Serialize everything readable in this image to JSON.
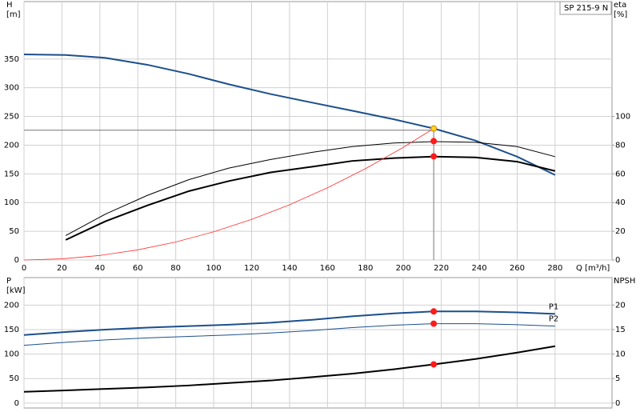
{
  "chart_data": [
    {
      "type": "line",
      "label": "SP 215-9 N",
      "ylabel": [
        "H",
        "[m]"
      ],
      "y2label": [
        "eta",
        "[%]"
      ],
      "xlabel": "Q [m³/h]",
      "xlim": [
        0,
        310
      ],
      "xticks": [
        0,
        20,
        40,
        60,
        80,
        100,
        120,
        140,
        160,
        180,
        200,
        220,
        240,
        260,
        280
      ],
      "ylim": [
        0,
        450
      ],
      "yticks": [
        0,
        50,
        100,
        150,
        200,
        250,
        300,
        350
      ],
      "y2lim": [
        0,
        180
      ],
      "y2ticks": [
        0,
        20,
        40,
        60,
        80,
        100
      ],
      "grid": true,
      "guides": {
        "x": 216,
        "y": 226,
        "color": "#777777"
      },
      "series": [
        {
          "color": "#1c4f8c",
          "width": 2,
          "axis": "y",
          "x": [
            0,
            22,
            43,
            65,
            87,
            108,
            130,
            152,
            173,
            195,
            216,
            238,
            260,
            280
          ],
          "values": [
            358,
            357,
            352,
            340,
            324,
            306,
            289,
            274,
            260,
            245,
            229,
            208,
            180,
            148
          ]
        },
        {
          "color": "#000000",
          "width": 1,
          "axis": "y2",
          "x": [
            22,
            43,
            65,
            87,
            108,
            130,
            152,
            173,
            195,
            216,
            238,
            260,
            280
          ],
          "values": [
            17,
            32,
            45,
            56,
            64,
            70,
            75,
            79,
            81.5,
            82.5,
            82,
            79,
            72
          ]
        },
        {
          "color": "#000000",
          "width": 2,
          "axis": "y2",
          "x": [
            22,
            43,
            65,
            87,
            108,
            130,
            152,
            173,
            195,
            216,
            238,
            260,
            280
          ],
          "values": [
            14,
            27,
            38,
            48,
            55,
            61,
            65,
            69,
            71,
            72,
            71.5,
            68.5,
            62
          ]
        },
        {
          "color": "#ff3030",
          "width": 0.8,
          "axis": "y",
          "x": [
            0,
            20,
            40,
            60,
            80,
            100,
            120,
            140,
            160,
            180,
            200,
            216
          ],
          "values": [
            0,
            2,
            7.9,
            17.7,
            31.4,
            49.1,
            70.7,
            96.2,
            125.7,
            159,
            196.3,
            229
          ]
        }
      ],
      "markers": [
        {
          "x": 216,
          "y": 229,
          "axis": "y",
          "color": "#ffd21f"
        },
        {
          "x": 216,
          "y": 82.8,
          "axis": "y2",
          "color": "#ff1a1a"
        },
        {
          "x": 216,
          "y": 72.2,
          "axis": "y2",
          "color": "#ff1a1a"
        }
      ]
    },
    {
      "type": "line",
      "ylabel": [
        "P",
        "[kW]"
      ],
      "y2label": [
        "NPSH"
      ],
      "xlim": [
        0,
        310
      ],
      "xticks": [
        0,
        20,
        40,
        60,
        80,
        100,
        120,
        140,
        160,
        180,
        200,
        220,
        240,
        260,
        280
      ],
      "ylim": [
        -10,
        256
      ],
      "yticks": [
        0,
        50,
        100,
        150,
        200
      ],
      "y2lim": [
        -1,
        25.6
      ],
      "y2ticks": [
        0,
        5,
        10,
        15,
        20
      ],
      "grid": true,
      "series": [
        {
          "name": "P1",
          "color": "#1c4f8c",
          "width": 2,
          "axis": "y",
          "x": [
            0,
            22,
            43,
            65,
            87,
            108,
            130,
            152,
            173,
            195,
            216,
            238,
            260,
            280
          ],
          "values": [
            139,
            145,
            150,
            154,
            157,
            160,
            164,
            170,
            177,
            183,
            187,
            187,
            185,
            182
          ]
        },
        {
          "name": "P2",
          "color": "#1c4f8c",
          "width": 1,
          "axis": "y",
          "x": [
            0,
            22,
            43,
            65,
            87,
            108,
            130,
            152,
            173,
            195,
            216,
            238,
            260,
            280
          ],
          "values": [
            118,
            124,
            129,
            133,
            136,
            139,
            143,
            148,
            154,
            159,
            162,
            162,
            160,
            157
          ]
        },
        {
          "color": "#000000",
          "width": 2,
          "axis": "y2",
          "x": [
            0,
            22,
            43,
            65,
            87,
            108,
            130,
            152,
            173,
            195,
            216,
            238,
            260,
            280
          ],
          "values": [
            2.3,
            2.6,
            2.9,
            3.2,
            3.6,
            4.1,
            4.6,
            5.3,
            6.0,
            6.9,
            7.9,
            9.0,
            10.3,
            11.6
          ]
        }
      ],
      "markers": [
        {
          "x": 216,
          "y": 187,
          "axis": "y",
          "color": "#ff1a1a"
        },
        {
          "x": 216,
          "y": 162,
          "axis": "y",
          "color": "#ff1a1a"
        },
        {
          "x": 216,
          "y": 7.9,
          "axis": "y2",
          "color": "#ff1a1a"
        }
      ]
    }
  ]
}
